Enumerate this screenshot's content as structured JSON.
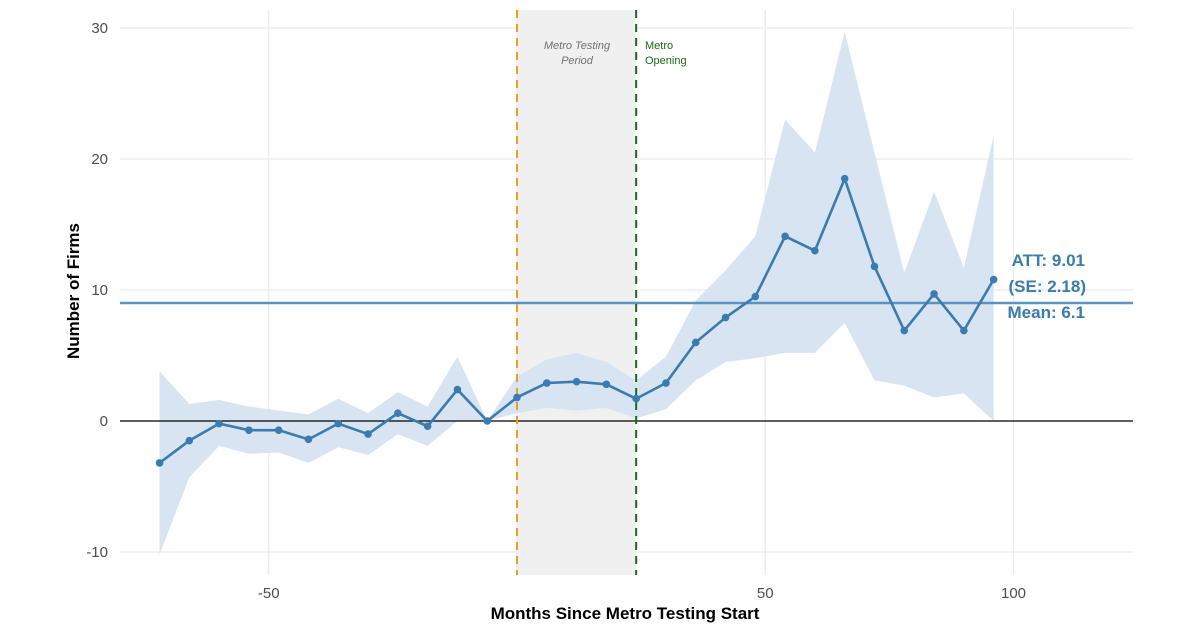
{
  "chart_data": {
    "type": "line",
    "xlabel": "Months Since Metro Testing Start",
    "ylabel": "Number of Firms",
    "xlim": [
      -80,
      124
    ],
    "ylim": [
      -11.7,
      30.5
    ],
    "xticks": [
      -50,
      50,
      100
    ],
    "xtick_labels": [
      "-50",
      "50",
      "100"
    ],
    "yticks": [
      -10,
      0,
      10,
      20,
      30
    ],
    "ytick_labels": [
      "-10",
      "0",
      "10",
      "20",
      "30"
    ],
    "grid": true,
    "x": [
      -72,
      -66,
      -60,
      -54,
      -48,
      -42,
      -36,
      -30,
      -24,
      -18,
      -12,
      -6,
      0,
      6,
      12,
      18,
      24,
      30,
      36,
      42,
      48,
      54,
      60,
      66,
      72,
      78,
      84,
      90,
      96
    ],
    "series": [
      {
        "values": [
          -3.2,
          -1.5,
          -0.2,
          -0.7,
          -0.7,
          -1.4,
          -0.2,
          -1.0,
          0.6,
          -0.4,
          2.4,
          0.0,
          1.8,
          2.9,
          3.0,
          2.8,
          1.7,
          2.9,
          6.0,
          7.9,
          9.5,
          14.1,
          13.0,
          18.5,
          11.8,
          6.9,
          9.7,
          6.9,
          10.8
        ],
        "ci_upper": [
          3.8,
          1.3,
          1.6,
          1.1,
          0.8,
          0.5,
          1.7,
          0.6,
          2.2,
          1.1,
          4.9,
          0.0,
          3.4,
          4.7,
          5.2,
          4.5,
          3.1,
          4.9,
          9.2,
          11.5,
          14.1,
          23.0,
          20.5,
          29.7,
          20.5,
          11.3,
          17.5,
          11.7,
          21.8
        ],
        "ci_lower": [
          -10.2,
          -4.3,
          -1.9,
          -2.5,
          -2.4,
          -3.2,
          -2.0,
          -2.6,
          -1.0,
          -1.9,
          0.0,
          0.0,
          0.6,
          1.0,
          0.8,
          1.0,
          0.2,
          0.9,
          3.1,
          4.5,
          4.8,
          5.2,
          5.2,
          7.5,
          3.1,
          2.7,
          1.8,
          2.1,
          0.0
        ],
        "color": "#3a7bb0",
        "band_color": "#d6e3f0"
      }
    ],
    "att_line": {
      "value": 9.01,
      "color": "#5b93c0"
    },
    "zero_line": 0,
    "testing_period": {
      "start": 0,
      "end": 24,
      "shade": "#f0f0f0",
      "label_line1": "Metro Testing",
      "label_line2": "Period"
    },
    "testing_start_line": {
      "x": 0,
      "color": "#e8a020"
    },
    "opening_line": {
      "x": 24,
      "color": "#1a6b1a",
      "label_line1": "Metro",
      "label_line2": "Opening"
    },
    "annotation": {
      "line1": "ATT: 9.01",
      "line2": "(SE: 2.18)",
      "line3": "Mean: 6.1"
    }
  }
}
